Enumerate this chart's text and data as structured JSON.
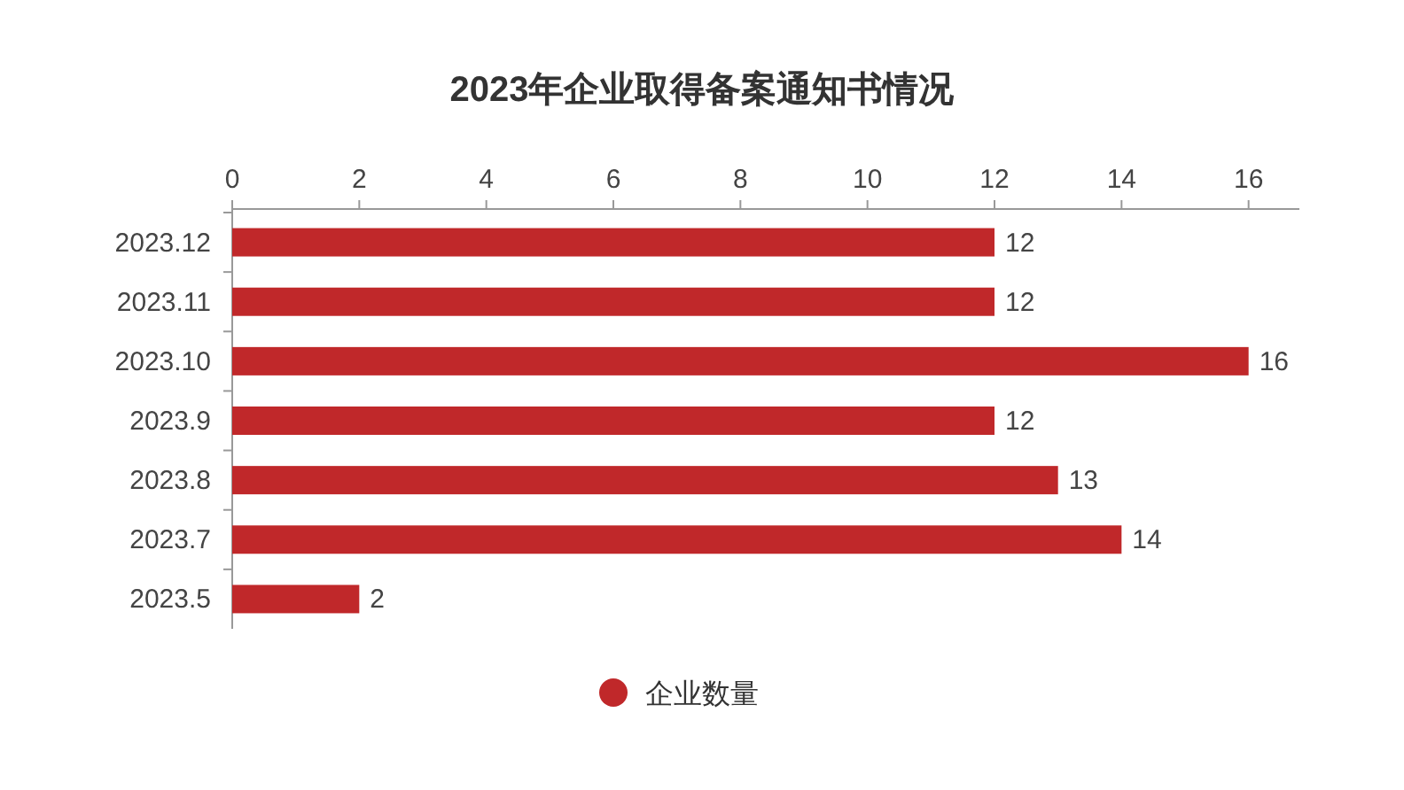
{
  "chart_data": {
    "type": "bar",
    "orientation": "horizontal",
    "title": "2023年企业取得备案通知书情况",
    "categories": [
      "2023.12",
      "2023.11",
      "2023.10",
      "2023.9",
      "2023.8",
      "2023.7",
      "2023.5"
    ],
    "series": [
      {
        "name": "企业数量",
        "color": "#c0282a",
        "values": [
          12,
          12,
          16,
          12,
          13,
          14,
          2
        ]
      }
    ],
    "xlim": [
      0,
      16.8
    ],
    "xticks": [
      0,
      2,
      4,
      6,
      8,
      10,
      12,
      14,
      16
    ],
    "data_labels": true,
    "legend": "bottom",
    "grid": false
  }
}
